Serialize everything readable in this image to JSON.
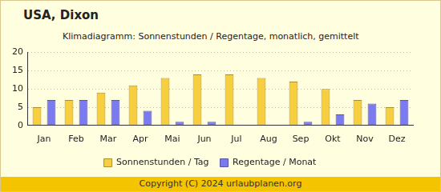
{
  "chart_data": {
    "type": "bar",
    "title": "USA, Dixon",
    "subtitle": "Klimadiagramm: Sonnenstunden / Regentage, monatlich, gemittelt",
    "categories": [
      "Jan",
      "Feb",
      "Mar",
      "Apr",
      "Mai",
      "Jun",
      "Jul",
      "Aug",
      "Sep",
      "Okt",
      "Nov",
      "Dez"
    ],
    "series": [
      {
        "name": "Sonnenstunden / Tag",
        "color": "#f7ce3e",
        "values": [
          5,
          7,
          9,
          11,
          13,
          14,
          14,
          13,
          12,
          10,
          7,
          5
        ]
      },
      {
        "name": "Regentage / Monat",
        "color": "#7b7bef",
        "values": [
          7,
          7,
          7,
          4,
          1,
          1,
          0,
          0,
          1,
          3,
          6,
          7
        ]
      }
    ],
    "ylim": [
      0,
      20
    ],
    "yticks": [
      0,
      5,
      10,
      15,
      20
    ],
    "grid": true,
    "legend": "bottom"
  },
  "footer": "Copyright (C) 2024 urlaubplanen.org"
}
